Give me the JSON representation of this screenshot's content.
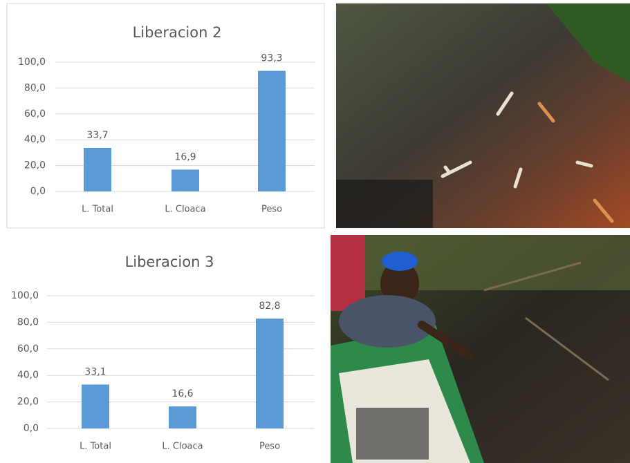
{
  "chart_data": [
    {
      "type": "bar",
      "title": "Liberacion 2",
      "categories": [
        "L. Total",
        "L. Cloaca",
        "Peso"
      ],
      "values": [
        33.7,
        16.9,
        93.3
      ],
      "value_labels": [
        "33,7",
        "16,9",
        "93,3"
      ],
      "color": "#5b9bd5",
      "ylim": [
        0,
        100
      ],
      "yticks": [
        {
          "value": 0,
          "label": "0,0"
        },
        {
          "value": 20,
          "label": "20,0"
        },
        {
          "value": 40,
          "label": "40,0"
        },
        {
          "value": 60,
          "label": "60,0"
        },
        {
          "value": 80,
          "label": "80,0"
        },
        {
          "value": 100,
          "label": "100,0"
        }
      ],
      "grid": true
    },
    {
      "type": "bar",
      "title": "Liberacion 3",
      "categories": [
        "L. Total",
        "L. Cloaca",
        "Peso"
      ],
      "values": [
        33.1,
        16.6,
        82.8
      ],
      "value_labels": [
        "33,1",
        "16,6",
        "82,8"
      ],
      "color": "#5b9bd5",
      "ylim": [
        0,
        100
      ],
      "yticks": [
        {
          "value": 0,
          "label": "0,0"
        },
        {
          "value": 20,
          "label": "20,0"
        },
        {
          "value": 40,
          "label": "40,0"
        },
        {
          "value": 60,
          "label": "60,0"
        },
        {
          "value": 80,
          "label": "80,0"
        },
        {
          "value": 100,
          "label": "100,0"
        }
      ],
      "grid": true
    }
  ]
}
